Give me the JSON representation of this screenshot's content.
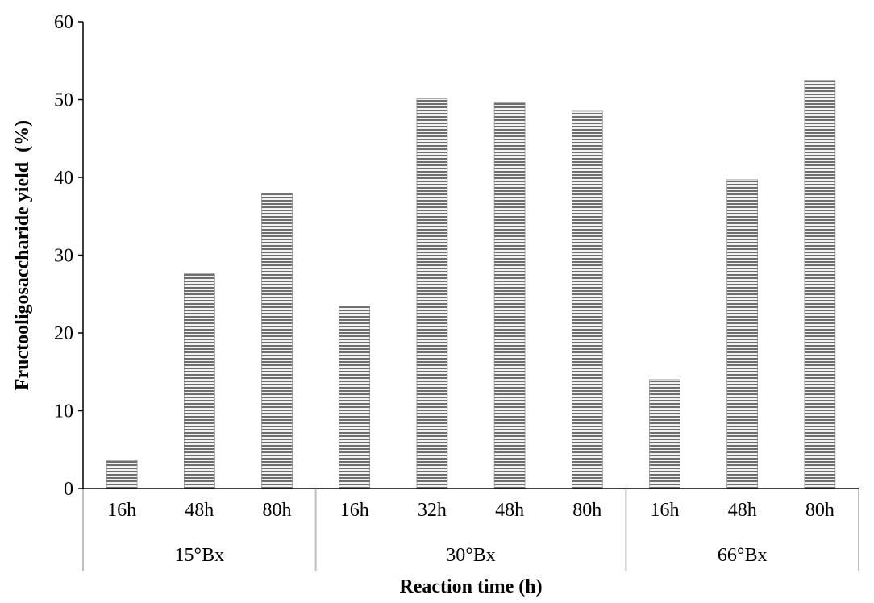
{
  "chart_data": {
    "type": "bar",
    "xlabel": "Reaction time (h)",
    "ylabel": "Fructooligosaccharide yield  (%)",
    "ylim": [
      0,
      60
    ],
    "yticks": [
      0,
      10,
      20,
      30,
      40,
      50,
      60
    ],
    "grid": false,
    "groups": [
      {
        "label": "15°Bx",
        "categories": [
          "16h",
          "48h",
          "80h"
        ],
        "values": [
          3.6,
          27.6,
          37.9
        ]
      },
      {
        "label": "30°Bx",
        "categories": [
          "16h",
          "32h",
          "48h",
          "80h"
        ],
        "values": [
          23.4,
          50.1,
          49.6,
          48.5
        ]
      },
      {
        "label": "66°Bx",
        "categories": [
          "16h",
          "48h",
          "80h"
        ],
        "values": [
          14.0,
          39.7,
          52.5
        ]
      }
    ],
    "colors": {
      "bar_stripe_dark": "#6e6e6e",
      "bar_stripe_light": "#f2f2f2",
      "axis": "#000000",
      "group_divider": "#bfbfbf"
    }
  }
}
